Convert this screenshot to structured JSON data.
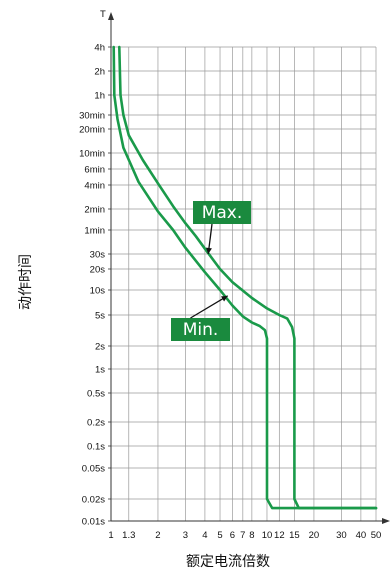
{
  "chart_data": {
    "type": "line",
    "xlabel": "额定电流倍数",
    "ylabel": "动作时间",
    "y_axis_arrow_label": "T",
    "x_scale": "log",
    "y_scale": "log",
    "xlim": [
      1,
      50
    ],
    "ylim": [
      "0.01s",
      "4h"
    ],
    "grid": true,
    "x_ticks": [
      {
        "value": 1,
        "label": "1"
      },
      {
        "value": 1.3,
        "label": "1.3"
      },
      {
        "value": 2,
        "label": "2"
      },
      {
        "value": 3,
        "label": "3"
      },
      {
        "value": 4,
        "label": "4"
      },
      {
        "value": 5,
        "label": "5"
      },
      {
        "value": 6,
        "label": "6"
      },
      {
        "value": 7,
        "label": "7"
      },
      {
        "value": 8,
        "label": "8"
      },
      {
        "value": 10,
        "label": "10"
      },
      {
        "value": 12,
        "label": "12"
      },
      {
        "value": 15,
        "label": "15"
      },
      {
        "value": 20,
        "label": "20"
      },
      {
        "value": 30,
        "label": "30"
      },
      {
        "value": 40,
        "label": "40"
      },
      {
        "value": 50,
        "label": "50"
      }
    ],
    "y_ticks": [
      {
        "seconds": 14400,
        "label": "4h"
      },
      {
        "seconds": 7200,
        "label": "2h"
      },
      {
        "seconds": 3600,
        "label": "1h"
      },
      {
        "seconds": 1800,
        "label": "30min"
      },
      {
        "seconds": 1200,
        "label": "20min"
      },
      {
        "seconds": 600,
        "label": "10min"
      },
      {
        "seconds": 360,
        "label": "6min"
      },
      {
        "seconds": 240,
        "label": "4min"
      },
      {
        "seconds": 120,
        "label": "2min"
      },
      {
        "seconds": 60,
        "label": "1min"
      },
      {
        "seconds": 30,
        "label": "30s"
      },
      {
        "seconds": 20,
        "label": "20s"
      },
      {
        "seconds": 10,
        "label": "10s"
      },
      {
        "seconds": 5,
        "label": "5s"
      },
      {
        "seconds": 2,
        "label": "2s"
      },
      {
        "seconds": 1,
        "label": "1s"
      },
      {
        "seconds": 0.5,
        "label": "0.5s"
      },
      {
        "seconds": 0.2,
        "label": "0.2s"
      },
      {
        "seconds": 0.1,
        "label": "0.1s"
      },
      {
        "seconds": 0.05,
        "label": "0.05s"
      },
      {
        "seconds": 0.02,
        "label": "0.02s"
      },
      {
        "seconds": 0.01,
        "label": "0.01s"
      }
    ],
    "series": [
      {
        "name": "Max.",
        "color": "#1a9a4a",
        "points": [
          {
            "x": 1.13,
            "y": 14400
          },
          {
            "x": 1.15,
            "y": 3600
          },
          {
            "x": 1.2,
            "y": 1800
          },
          {
            "x": 1.3,
            "y": 1000
          },
          {
            "x": 1.6,
            "y": 480
          },
          {
            "x": 2,
            "y": 250
          },
          {
            "x": 2.5,
            "y": 130
          },
          {
            "x": 3,
            "y": 75
          },
          {
            "x": 3.5,
            "y": 50
          },
          {
            "x": 4,
            "y": 35
          },
          {
            "x": 5,
            "y": 20
          },
          {
            "x": 6,
            "y": 13
          },
          {
            "x": 8,
            "y": 8
          },
          {
            "x": 10,
            "y": 6
          },
          {
            "x": 12,
            "y": 5
          },
          {
            "x": 13.5,
            "y": 4.5
          },
          {
            "x": 14.5,
            "y": 3.5
          },
          {
            "x": 15,
            "y": 2.5
          },
          {
            "x": 15,
            "y": 0.02
          },
          {
            "x": 16,
            "y": 0.015
          },
          {
            "x": 50,
            "y": 0.015
          }
        ]
      },
      {
        "name": "Min.",
        "color": "#1a9a4a",
        "points": [
          {
            "x": 1.04,
            "y": 14400
          },
          {
            "x": 1.05,
            "y": 3600
          },
          {
            "x": 1.1,
            "y": 1600
          },
          {
            "x": 1.2,
            "y": 700
          },
          {
            "x": 1.5,
            "y": 260
          },
          {
            "x": 2,
            "y": 110
          },
          {
            "x": 2.5,
            "y": 60
          },
          {
            "x": 3,
            "y": 36
          },
          {
            "x": 4,
            "y": 18
          },
          {
            "x": 5,
            "y": 10
          },
          {
            "x": 6,
            "y": 6.5
          },
          {
            "x": 7,
            "y": 4.8
          },
          {
            "x": 8,
            "y": 4
          },
          {
            "x": 9,
            "y": 3.6
          },
          {
            "x": 9.7,
            "y": 3.2
          },
          {
            "x": 10,
            "y": 2.5
          },
          {
            "x": 10,
            "y": 0.02
          },
          {
            "x": 10.8,
            "y": 0.015
          },
          {
            "x": 50,
            "y": 0.015
          }
        ]
      }
    ],
    "annotations": [
      {
        "text": "Max.",
        "points_to_series": "Max."
      },
      {
        "text": "Min.",
        "points_to_series": "Min."
      }
    ]
  }
}
